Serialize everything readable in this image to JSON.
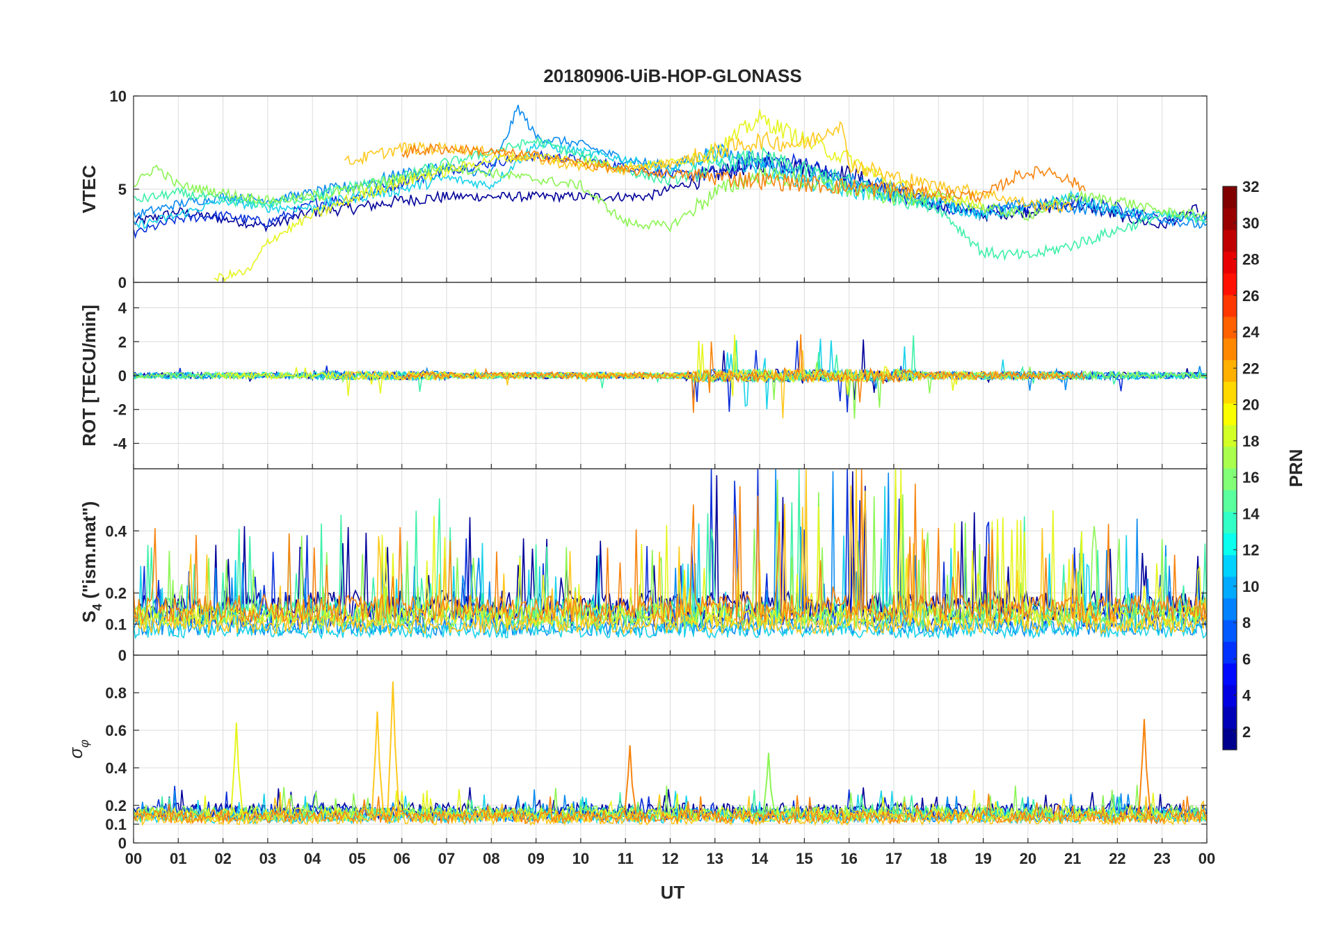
{
  "chart_data": {
    "type": "line",
    "title": "20180906-UiB-HOP-GLONASS",
    "xlabel": "UT",
    "x_tick_labels": [
      "00",
      "01",
      "02",
      "03",
      "04",
      "05",
      "06",
      "07",
      "08",
      "09",
      "10",
      "11",
      "12",
      "13",
      "14",
      "15",
      "16",
      "17",
      "18",
      "19",
      "20",
      "21",
      "22",
      "23",
      "00"
    ],
    "xlim_hours": [
      0,
      24
    ],
    "grid": true,
    "panels": [
      {
        "id": "vtec",
        "ylabel": "VTEC",
        "ylim": [
          0,
          10
        ],
        "yticks": [
          0,
          5,
          10
        ],
        "ytick_labels": [
          "0",
          "5",
          "10"
        ]
      },
      {
        "id": "rot",
        "ylabel": "ROT [TECU/min]",
        "ylim": [
          -5.5,
          5.5
        ],
        "yticks": [
          -4,
          -2,
          0,
          2,
          4
        ],
        "ytick_labels": [
          "-4",
          "-2",
          "0",
          "2",
          "4"
        ]
      },
      {
        "id": "s4",
        "ylabel": "S4 (\"ism.mat\")",
        "ylabel_main": "S",
        "ylabel_sub": "4",
        "ylabel_rest": " (\"ism.mat\")",
        "ylim": [
          0,
          0.6
        ],
        "yticks": [
          0,
          0.1,
          0.2,
          0.4
        ],
        "ytick_labels": [
          "0",
          "0.1",
          "0.2",
          "0.4"
        ]
      },
      {
        "id": "sigphi",
        "ylabel": "σφ",
        "ylabel_main": "σ",
        "ylabel_sub": "φ",
        "ylim": [
          0,
          1.0
        ],
        "yticks": [
          0,
          0.1,
          0.2,
          0.4,
          0.6,
          0.8
        ],
        "ytick_labels": [
          "0",
          "0.1",
          "0.2",
          "0.4",
          "0.6",
          "0.8"
        ]
      }
    ],
    "series": [
      {
        "name": "PRN 2",
        "prn": 2,
        "color": "#00009a",
        "vtec": [
          [
            0,
            3.2
          ],
          [
            1,
            3.8
          ],
          [
            2,
            3.4
          ],
          [
            3,
            3.0
          ],
          [
            4,
            3.8
          ],
          [
            5,
            4.0
          ],
          [
            6,
            4.4
          ],
          [
            7,
            4.6
          ],
          [
            11.5,
            4.6
          ],
          [
            13,
            5.8
          ],
          [
            14,
            6.4
          ],
          [
            15,
            6.2
          ],
          [
            16,
            5.8
          ],
          [
            17,
            4.8
          ],
          [
            18,
            4.2
          ],
          [
            19,
            3.6
          ],
          [
            20,
            3.8
          ],
          [
            21,
            4.2
          ],
          [
            22,
            3.6
          ],
          [
            23,
            3.0
          ],
          [
            23.8,
            4.0
          ]
        ],
        "s4_base": 0.16,
        "sigphi_base": 0.17
      },
      {
        "name": "PRN 5",
        "prn": 5,
        "color": "#0a2fd8",
        "vtec": [
          [
            0,
            2.6
          ],
          [
            1,
            3.4
          ],
          [
            2,
            3.6
          ],
          [
            3,
            3.2
          ],
          [
            4,
            4.2
          ],
          [
            5,
            4.6
          ],
          [
            6,
            5.4
          ],
          [
            7,
            6.0
          ],
          [
            8,
            6.4
          ],
          [
            9,
            6.8
          ],
          [
            10,
            6.6
          ],
          [
            11,
            6.2
          ],
          [
            12,
            5.8
          ],
          [
            13,
            5.8
          ],
          [
            14,
            6.6
          ],
          [
            15,
            6.4
          ],
          [
            16,
            5.2
          ],
          [
            17,
            4.8
          ],
          [
            18,
            4.0
          ],
          [
            19,
            3.8
          ],
          [
            20,
            4.0
          ],
          [
            21,
            4.4
          ],
          [
            22,
            4.0
          ],
          [
            23,
            3.4
          ],
          [
            24,
            3.6
          ]
        ],
        "s4_base": 0.13,
        "sigphi_base": 0.16
      },
      {
        "name": "PRN 9",
        "prn": 9,
        "color": "#0a8af0",
        "vtec": [
          [
            0,
            3.6
          ],
          [
            1,
            4.2
          ],
          [
            2,
            4.6
          ],
          [
            3,
            4.4
          ],
          [
            4,
            4.8
          ],
          [
            5,
            5.2
          ],
          [
            6,
            5.8
          ],
          [
            7,
            6.2
          ],
          [
            8,
            5.8
          ],
          [
            8.6,
            9.4
          ],
          [
            9,
            7.8
          ],
          [
            10,
            7.4
          ],
          [
            11,
            6.6
          ],
          [
            12,
            6.2
          ],
          [
            13,
            7.0
          ],
          [
            14,
            6.6
          ],
          [
            15,
            5.8
          ],
          [
            16,
            5.4
          ],
          [
            17,
            5.0
          ],
          [
            18,
            4.4
          ],
          [
            19,
            3.8
          ],
          [
            20,
            4.2
          ],
          [
            21,
            4.0
          ],
          [
            22,
            3.8
          ],
          [
            23,
            3.4
          ],
          [
            24,
            3.0
          ]
        ],
        "s4_base": 0.09,
        "sigphi_base": 0.15
      },
      {
        "name": "PRN 12",
        "prn": 12,
        "color": "#18d2ea",
        "vtec": [
          [
            0,
            3.0
          ],
          [
            1,
            3.6
          ],
          [
            2,
            4.4
          ],
          [
            3,
            4.0
          ],
          [
            4,
            4.0
          ],
          [
            5,
            4.6
          ],
          [
            6,
            5.0
          ],
          [
            7,
            5.6
          ],
          [
            8,
            5.2
          ],
          [
            9,
            7.4
          ],
          [
            10,
            7.0
          ],
          [
            11,
            6.6
          ],
          [
            12,
            6.0
          ],
          [
            13,
            6.8
          ],
          [
            14,
            6.2
          ],
          [
            15,
            5.4
          ],
          [
            16,
            5.0
          ],
          [
            17,
            4.6
          ],
          [
            18,
            4.2
          ],
          [
            19,
            3.6
          ],
          [
            20,
            4.0
          ],
          [
            21,
            4.6
          ],
          [
            22,
            3.8
          ],
          [
            23,
            3.6
          ],
          [
            24,
            3.4
          ]
        ],
        "s4_base": 0.08,
        "sigphi_base": 0.14
      },
      {
        "name": "PRN 15",
        "prn": 15,
        "color": "#3ef0a8",
        "vtec": [
          [
            0,
            4.4
          ],
          [
            1,
            4.8
          ],
          [
            2,
            4.4
          ],
          [
            3,
            4.2
          ],
          [
            4,
            4.6
          ],
          [
            5,
            5.2
          ],
          [
            6,
            5.6
          ],
          [
            7,
            6.4
          ],
          [
            8,
            7.0
          ],
          [
            9,
            7.6
          ],
          [
            10,
            6.8
          ],
          [
            11,
            6.0
          ],
          [
            12,
            5.4
          ],
          [
            13,
            6.2
          ],
          [
            14,
            6.8
          ],
          [
            15,
            6.0
          ],
          [
            16,
            5.4
          ],
          [
            17,
            4.6
          ],
          [
            18,
            4.0
          ],
          [
            19,
            1.6
          ],
          [
            20,
            1.4
          ],
          [
            21,
            2.0
          ],
          [
            22,
            2.8
          ],
          [
            23,
            3.6
          ],
          [
            24,
            3.4
          ]
        ],
        "s4_base": 0.14,
        "sigphi_base": 0.15
      },
      {
        "name": "PRN 17",
        "prn": 17,
        "color": "#8cf554",
        "vtec": [
          [
            0,
            5.2
          ],
          [
            0.5,
            6.2
          ],
          [
            1,
            5.2
          ],
          [
            2,
            4.8
          ],
          [
            3,
            4.4
          ],
          [
            4,
            4.6
          ],
          [
            5,
            5.0
          ],
          [
            6,
            5.6
          ],
          [
            7,
            6.2
          ],
          [
            10,
            5.2
          ],
          [
            11,
            3.2
          ],
          [
            12,
            3.0
          ],
          [
            13,
            4.8
          ],
          [
            14,
            5.8
          ],
          [
            15,
            5.4
          ],
          [
            16,
            5.0
          ],
          [
            17,
            4.6
          ],
          [
            18,
            4.6
          ],
          [
            19,
            4.0
          ],
          [
            20,
            3.6
          ],
          [
            21,
            4.6
          ],
          [
            22,
            4.4
          ],
          [
            23,
            3.8
          ],
          [
            24,
            3.6
          ]
        ],
        "s4_base": 0.12,
        "sigphi_base": 0.16
      },
      {
        "name": "PRN 19",
        "prn": 19,
        "color": "#e6f51e",
        "vtec": [
          [
            1.8,
            0.2
          ],
          [
            2.6,
            0.6
          ],
          [
            3,
            2.2
          ],
          [
            4,
            3.6
          ],
          [
            5,
            4.6
          ],
          [
            6,
            5.4
          ],
          [
            7,
            6.0
          ],
          [
            8,
            6.6
          ],
          [
            9,
            6.8
          ],
          [
            11,
            6.2
          ],
          [
            12,
            6.4
          ],
          [
            13,
            7.0
          ],
          [
            14,
            8.8
          ],
          [
            15,
            7.6
          ],
          [
            16,
            6.6
          ],
          [
            17,
            5.2
          ],
          [
            18,
            4.6
          ],
          [
            19,
            4.2
          ]
        ],
        "s4_base": 0.13,
        "sigphi_base": 0.15
      },
      {
        "name": "PRN 21",
        "prn": 21,
        "color": "#ffc81e",
        "vtec": [
          [
            4.7,
            6.4
          ],
          [
            5,
            6.6
          ],
          [
            6,
            7.2
          ],
          [
            7,
            7.2
          ],
          [
            8,
            7.0
          ],
          [
            9,
            6.6
          ],
          [
            10,
            6.2
          ],
          [
            11,
            6.0
          ],
          [
            12,
            6.4
          ],
          [
            13,
            7.0
          ],
          [
            14,
            7.6
          ],
          [
            15,
            7.4
          ],
          [
            15.8,
            8.6
          ],
          [
            16,
            6.4
          ],
          [
            17,
            5.6
          ],
          [
            18,
            5.2
          ],
          [
            19,
            4.8
          ],
          [
            20,
            4.2
          ],
          [
            21,
            4.0
          ]
        ],
        "s4_base": 0.1,
        "sigphi_base": 0.13
      },
      {
        "name": "PRN 24",
        "prn": 24,
        "color": "#f7840f",
        "vtec": [
          [
            6.0,
            7.0
          ],
          [
            7,
            7.2
          ],
          [
            8,
            7.0
          ],
          [
            9,
            6.8
          ],
          [
            10,
            6.4
          ],
          [
            11,
            6.0
          ],
          [
            19,
            4.6
          ],
          [
            19.8,
            5.8
          ],
          [
            20.5,
            6.0
          ],
          [
            21.3,
            5.0
          ]
        ],
        "s4_base": 0.15,
        "sigphi_base": 0.14
      }
    ],
    "colorbar": {
      "label": "PRN",
      "range": [
        1,
        32
      ],
      "ticks": [
        2,
        4,
        6,
        8,
        10,
        12,
        14,
        16,
        18,
        20,
        22,
        24,
        26,
        28,
        30,
        32
      ],
      "tick_labels": [
        "2",
        "4",
        "6",
        "8",
        "10",
        "12",
        "14",
        "16",
        "18",
        "20",
        "22",
        "24",
        "26",
        "28",
        "30",
        "32"
      ],
      "colors": [
        "#00008f",
        "#0000b8",
        "#0000e0",
        "#000aff",
        "#0032ff",
        "#005aff",
        "#0082ff",
        "#00aaff",
        "#00d2ff",
        "#0affee",
        "#32ffc6",
        "#5aff9e",
        "#82ff76",
        "#aaff4e",
        "#d2ff26",
        "#faff00",
        "#ffd800",
        "#ffb000",
        "#ff8800",
        "#ff6000",
        "#ff3800",
        "#ff1000",
        "#e80000",
        "#c00000",
        "#980000",
        "#800000"
      ]
    }
  }
}
